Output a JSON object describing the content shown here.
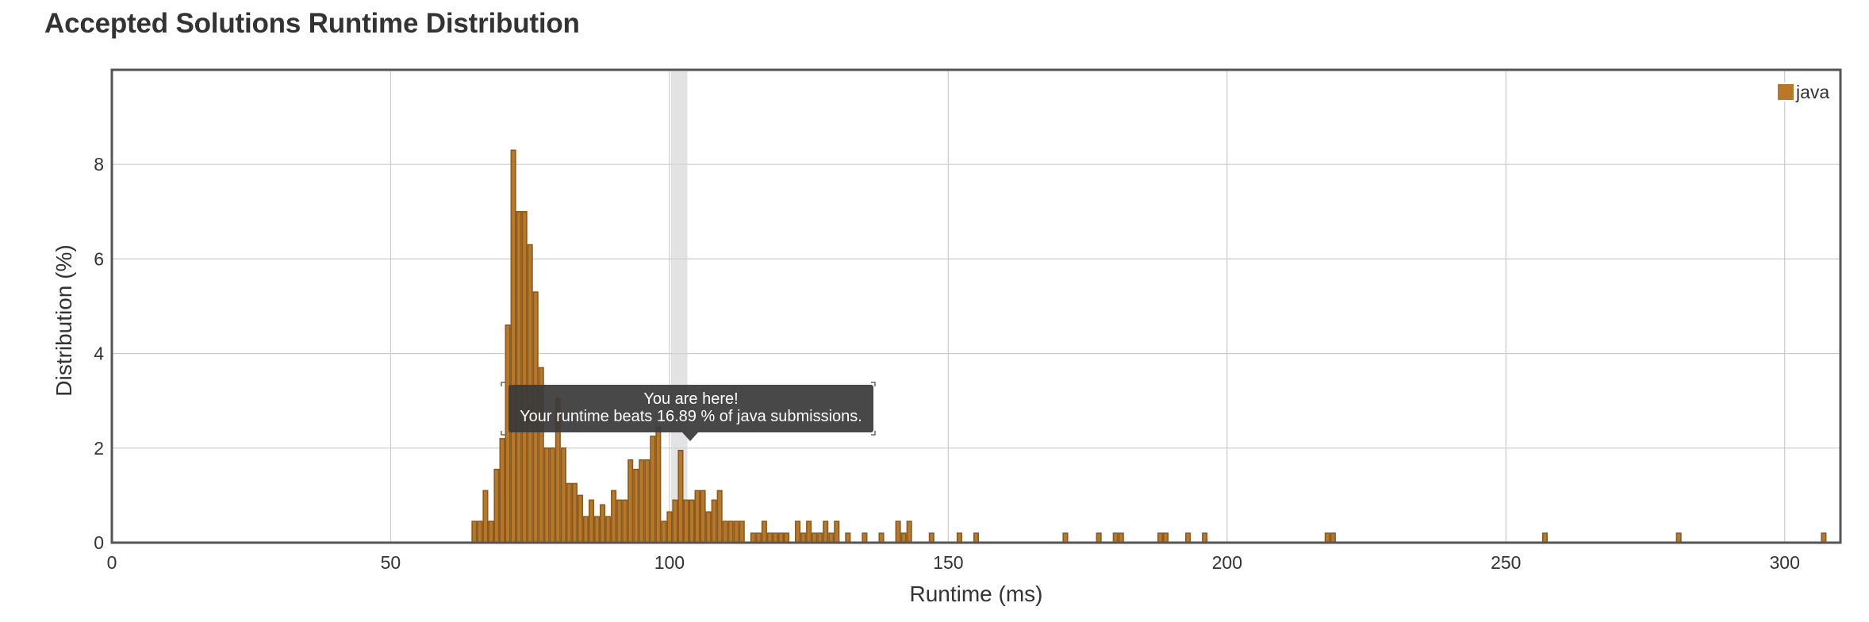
{
  "page": {
    "title": "Accepted Solutions Runtime Distribution"
  },
  "chart_data": {
    "type": "bar",
    "xlabel": "Runtime (ms)",
    "ylabel": "Distribution (%)",
    "xlim": [
      0,
      310
    ],
    "ylim": [
      0,
      10
    ],
    "x_ticks": [
      0,
      50,
      100,
      150,
      200,
      250,
      300
    ],
    "y_ticks": [
      0,
      2,
      4,
      6,
      8
    ],
    "grid": true,
    "legend": {
      "position": "top-right",
      "label": "java"
    },
    "series": [
      {
        "name": "java",
        "color": "#B8782A",
        "edge_color": "#8A5A1E",
        "x": [
          65,
          66,
          67,
          68,
          69,
          70,
          71,
          72,
          73,
          74,
          75,
          76,
          77,
          78,
          79,
          80,
          81,
          82,
          83,
          84,
          85,
          86,
          87,
          88,
          89,
          90,
          91,
          92,
          93,
          94,
          95,
          96,
          97,
          98,
          99,
          100,
          101,
          102,
          103,
          104,
          105,
          106,
          107,
          108,
          109,
          110,
          111,
          112,
          113,
          115,
          116,
          117,
          118,
          119,
          120,
          121,
          123,
          124,
          125,
          126,
          127,
          128,
          129,
          130,
          132,
          135,
          138,
          141,
          142,
          143,
          147,
          152,
          155,
          171,
          177,
          180,
          181,
          188,
          189,
          193,
          196,
          218,
          219,
          257,
          281,
          307
        ],
        "values": [
          0.45,
          0.45,
          1.1,
          0.45,
          1.55,
          2.2,
          4.6,
          8.3,
          7.0,
          7.0,
          6.3,
          5.3,
          3.7,
          2.0,
          2.0,
          3.05,
          2.0,
          1.25,
          1.25,
          1.0,
          0.55,
          0.9,
          0.55,
          0.8,
          0.55,
          1.1,
          0.9,
          0.9,
          1.75,
          1.55,
          1.75,
          1.75,
          2.25,
          2.45,
          0.45,
          0.65,
          0.9,
          1.95,
          0.9,
          0.9,
          1.1,
          1.1,
          0.65,
          0.9,
          1.1,
          0.45,
          0.45,
          0.45,
          0.45,
          0.2,
          0.2,
          0.45,
          0.2,
          0.2,
          0.2,
          0.2,
          0.45,
          0.2,
          0.45,
          0.2,
          0.2,
          0.45,
          0.2,
          0.45,
          0.2,
          0.2,
          0.2,
          0.45,
          0.2,
          0.45,
          0.2,
          0.2,
          0.2,
          0.2,
          0.2,
          0.2,
          0.2,
          0.2,
          0.2,
          0.2,
          0.2,
          0.2,
          0.2,
          0.2,
          0.2,
          0.2
        ]
      }
    ],
    "highlight": {
      "x": 101,
      "tooltip_line1": "You are here!",
      "tooltip_line2": "Your runtime beats 16.89 % of java submissions."
    }
  }
}
